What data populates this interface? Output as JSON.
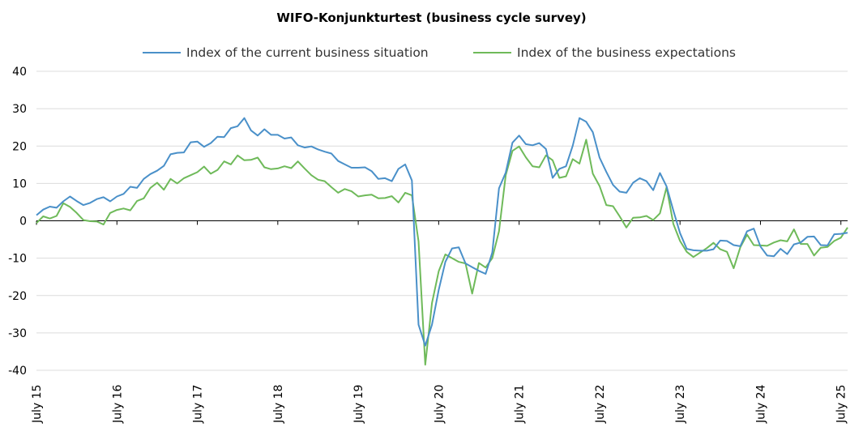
{
  "chart_data": {
    "type": "line",
    "title": "WIFO-Konjunkturtest (business cycle survey)",
    "xlabel": "",
    "ylabel": "",
    "ylim": [
      -40,
      40
    ],
    "yticks": [
      40,
      30,
      20,
      10,
      0,
      -10,
      -20,
      -30,
      -40
    ],
    "xticks": [
      "July 15",
      "July 16",
      "July 17",
      "July 18",
      "July 19",
      "July 20",
      "July 21",
      "July 22",
      "July 23",
      "July 24",
      "July 25"
    ],
    "x_start": "July 15",
    "x_end": "July 25",
    "x_step": "1 month",
    "grid": true,
    "legend_position": "top",
    "series": [
      {
        "name": "Index of the current business situation",
        "color": "#4a90c9",
        "values": [
          1.5,
          3,
          3.8,
          3.5,
          5.2,
          6.5,
          5.3,
          4.2,
          4.8,
          5.8,
          6.3,
          5.2,
          6.5,
          7.2,
          9.1,
          8.8,
          11.2,
          12.5,
          13.4,
          14.7,
          17.8,
          18.2,
          18.3,
          21,
          21.2,
          19.8,
          20.8,
          22.5,
          22.4,
          24.8,
          25.3,
          27.5,
          24.2,
          22.8,
          24.5,
          23,
          23,
          22,
          22.3,
          20.2,
          19.6,
          19.9,
          19.1,
          18.5,
          18,
          16,
          15.1,
          14.2,
          14.2,
          14.3,
          13.3,
          11.2,
          11.4,
          10.6,
          13.9,
          15.1,
          10.8,
          -27.8,
          -33.4,
          -27.8,
          -18.5,
          -11,
          -7.4,
          -7.1,
          -11.4,
          -12.4,
          -13.4,
          -14.2,
          -8.5,
          8.7,
          12.9,
          20.9,
          22.8,
          20.5,
          20.2,
          20.8,
          19.2,
          11.5,
          13.9,
          14.6,
          20.1,
          27.5,
          26.5,
          23.7,
          16.9,
          13.1,
          9.6,
          7.8,
          7.5,
          10.2,
          11.4,
          10.6,
          8.2,
          12.8,
          9.2,
          2.8,
          -3.3,
          -7.5,
          -7.9,
          -8,
          -8,
          -7.6,
          -5.3,
          -5.4,
          -6.5,
          -6.8,
          -2.8,
          -2.1,
          -6.9,
          -9.3,
          -9.5,
          -7.5,
          -8.9,
          -6.3,
          -5.8,
          -4.3,
          -4.2,
          -6.5,
          -6.6,
          -3.6,
          -3.5,
          -3.2
        ]
      },
      {
        "name": "Index of the business expectations",
        "color": "#6fba5a",
        "values": [
          -0.6,
          1.2,
          0.6,
          1.3,
          4.7,
          3.7,
          2.1,
          0.2,
          -0.1,
          -0.2,
          -1,
          2.1,
          2.9,
          3.3,
          2.8,
          5.3,
          6,
          8.8,
          10.2,
          8.3,
          11.2,
          10,
          11.4,
          12.2,
          13,
          14.5,
          12.6,
          13.6,
          15.9,
          15.1,
          17.5,
          16.2,
          16.3,
          16.9,
          14.3,
          13.8,
          14,
          14.6,
          14.1,
          15.9,
          14,
          12.2,
          11,
          10.6,
          9,
          7.5,
          8.5,
          7.9,
          6.5,
          6.8,
          7,
          6,
          6.1,
          6.6,
          4.9,
          7.5,
          6.8,
          -5.5,
          -38.5,
          -22,
          -13.5,
          -9,
          -10,
          -11,
          -11.4,
          -19.5,
          -11.3,
          -12.5,
          -10,
          -2.8,
          12.2,
          18.7,
          19.9,
          17,
          14.6,
          14.3,
          17.5,
          16.2,
          11.5,
          11.9,
          16.5,
          15.3,
          21.7,
          12.6,
          9.3,
          4.2,
          3.9,
          1.2,
          -1.8,
          0.8,
          0.9,
          1.3,
          0.2,
          2,
          9,
          -0.8,
          -5.4,
          -8.3,
          -9.7,
          -8.5,
          -7.3,
          -5.9,
          -7.6,
          -8.3,
          -12.7,
          -7.1,
          -3.7,
          -6.5,
          -6.6,
          -6.7,
          -5.8,
          -5.2,
          -5.5,
          -2.3,
          -6.2,
          -6.2,
          -9.3,
          -7.2,
          -7,
          -5.4,
          -4.5,
          -1.8
        ]
      }
    ]
  }
}
